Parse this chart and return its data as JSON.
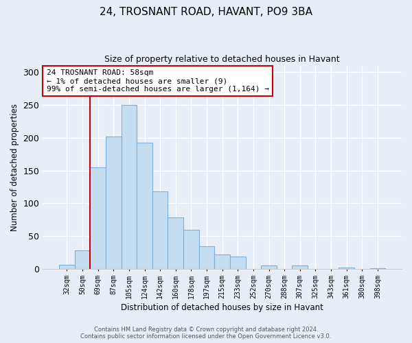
{
  "title1": "24, TROSNANT ROAD, HAVANT, PO9 3BA",
  "title2": "Size of property relative to detached houses in Havant",
  "xlabel": "Distribution of detached houses by size in Havant",
  "ylabel": "Number of detached properties",
  "bar_labels": [
    "32sqm",
    "50sqm",
    "69sqm",
    "87sqm",
    "105sqm",
    "124sqm",
    "142sqm",
    "160sqm",
    "178sqm",
    "197sqm",
    "215sqm",
    "233sqm",
    "252sqm",
    "270sqm",
    "288sqm",
    "307sqm",
    "325sqm",
    "343sqm",
    "361sqm",
    "380sqm",
    "398sqm"
  ],
  "bar_values": [
    6,
    28,
    155,
    202,
    250,
    192,
    118,
    79,
    60,
    35,
    22,
    19,
    0,
    5,
    0,
    5,
    0,
    0,
    2,
    0,
    1
  ],
  "bar_color": "#c5ddf0",
  "bar_edge_color": "#7aaed6",
  "marker_color": "#cc0000",
  "annotation_line1": "24 TROSNANT ROAD: 58sqm",
  "annotation_line2": "← 1% of detached houses are smaller (9)",
  "annotation_line3": "99% of semi-detached houses are larger (1,164) →",
  "annotation_box_color": "#ffffff",
  "annotation_box_edge": "#cc0000",
  "ylim": [
    0,
    310
  ],
  "yticks": [
    0,
    50,
    100,
    150,
    200,
    250,
    300
  ],
  "footer1": "Contains HM Land Registry data © Crown copyright and database right 2024.",
  "footer2": "Contains public sector information licensed under the Open Government Licence v3.0.",
  "bg_color": "#e8eef8",
  "grid_color": "#ffffff",
  "spine_color": "#cccccc"
}
